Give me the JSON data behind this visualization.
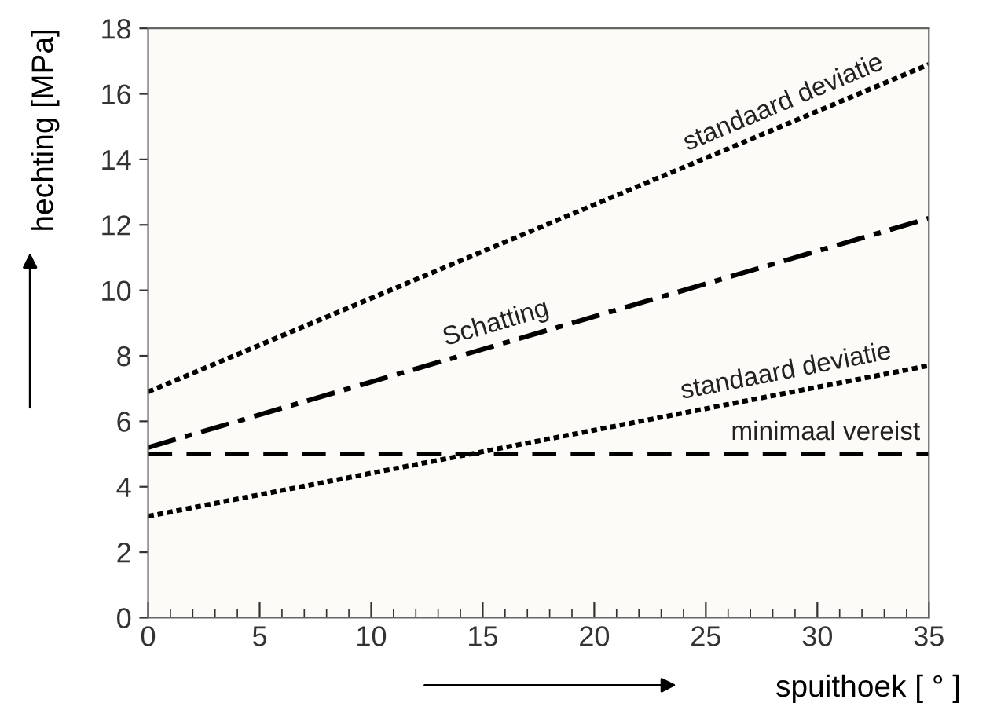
{
  "chart_data": {
    "type": "line",
    "xlabel": "spuithoek [ ° ]",
    "ylabel": "hechting [MPa]",
    "x": [
      0,
      35
    ],
    "series": [
      {
        "name": "standaard deviatie",
        "color": "#000000",
        "line_style": "dotted",
        "values": [
          6.9,
          16.9
        ]
      },
      {
        "name": "Schatting",
        "color": "#000000",
        "line_style": "dashdot",
        "values": [
          5.2,
          12.2
        ]
      },
      {
        "name": "standaard deviatie",
        "color": "#000000",
        "line_style": "dotted",
        "values": [
          3.1,
          7.7
        ]
      }
    ],
    "ref_lines": [
      {
        "axis": "y",
        "value": 5.0,
        "label": "minimaal vereist",
        "color": "#000000",
        "line_style": "dashed"
      }
    ],
    "xlim": [
      0,
      35
    ],
    "xticks": [
      0,
      5,
      10,
      15,
      20,
      25,
      30,
      35
    ],
    "ylim": [
      0,
      18
    ],
    "yticks": [
      0,
      2,
      4,
      6,
      8,
      10,
      12,
      14,
      16,
      18
    ],
    "grid": false,
    "legend": false,
    "marker": "none"
  }
}
